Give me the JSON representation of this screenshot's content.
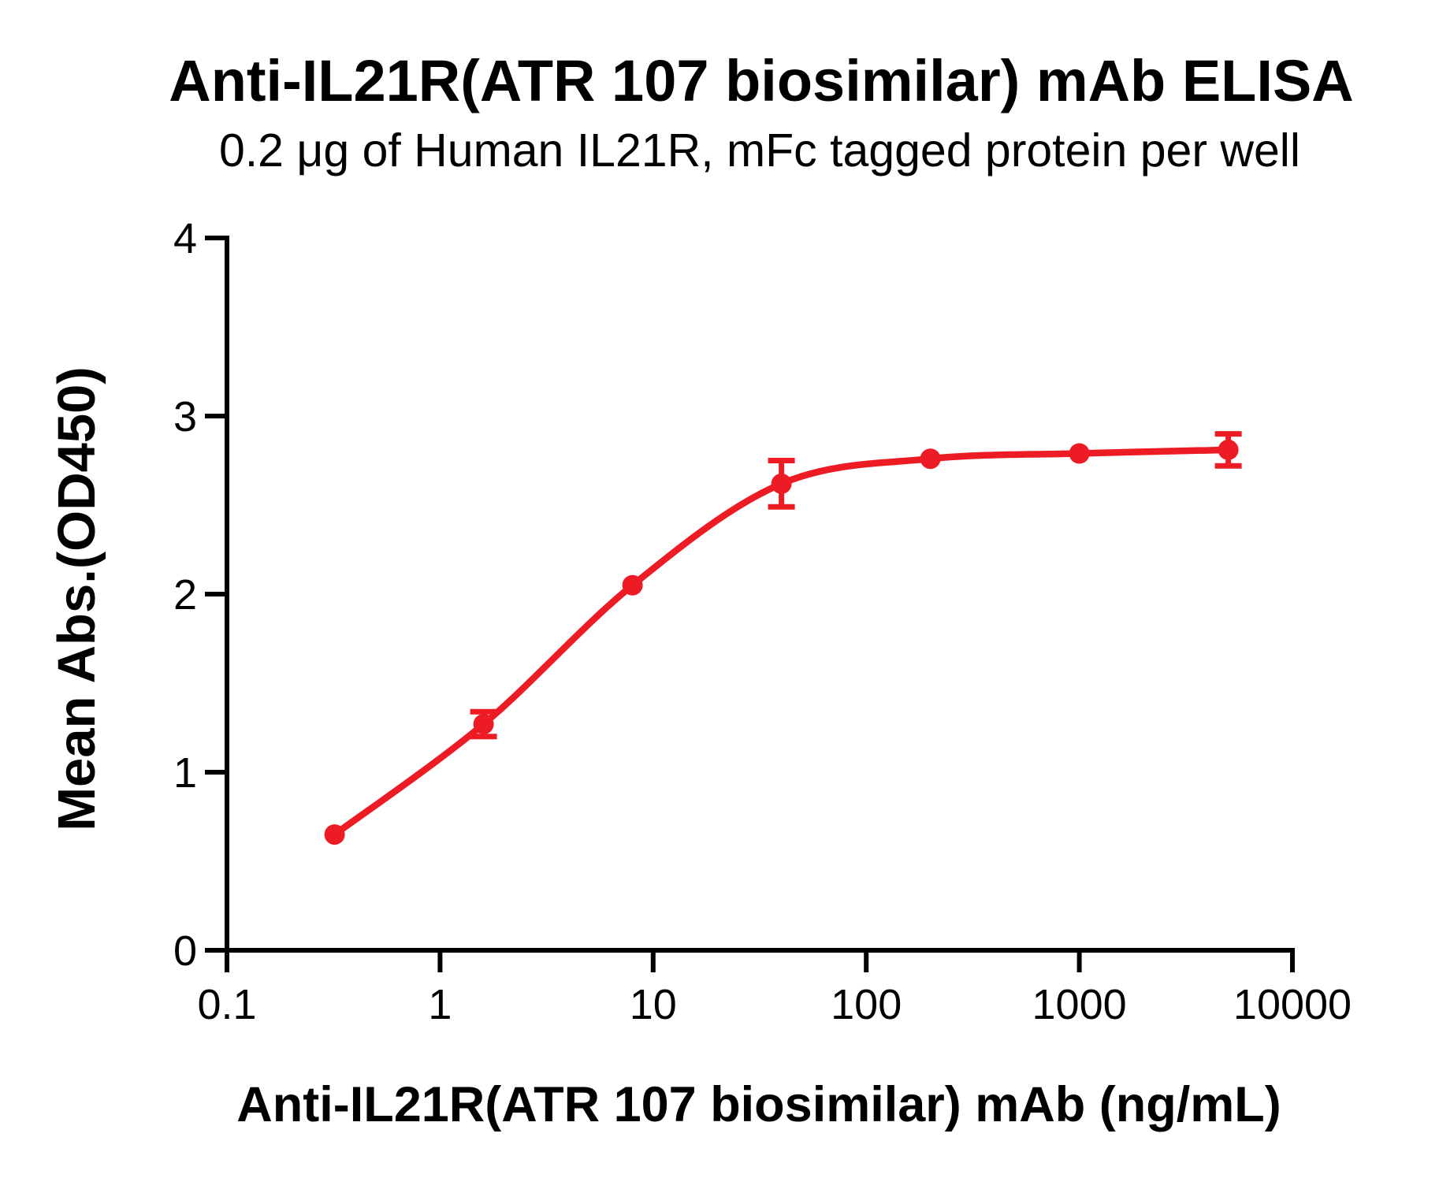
{
  "chart_data": {
    "type": "scatter",
    "title": "Anti-IL21R(ATR 107 biosimilar) mAb ELISA",
    "subtitle": "0.2 μg of Human IL21R, mFc tagged protein per well",
    "xlabel": "Anti-IL21R(ATR 107 biosimilar) mAb (ng/mL)",
    "ylabel": "Mean Abs.(OD450)",
    "x_scale": "log10",
    "xlim": [
      0.1,
      10000
    ],
    "ylim": [
      0,
      4
    ],
    "x_ticks": [
      0.1,
      1,
      10,
      100,
      1000,
      10000
    ],
    "x_tick_labels": [
      "0.1",
      "1",
      "10",
      "100",
      "1000",
      "10000"
    ],
    "y_ticks": [
      0,
      1,
      2,
      3,
      4
    ],
    "y_tick_labels": [
      "0",
      "1",
      "2",
      "3",
      "4"
    ],
    "grid": false,
    "legend": null,
    "axis_color": "#000000",
    "series": [
      {
        "name": "Anti-IL21R(ATR 107 biosimilar) mAb",
        "color": "#ED1C24",
        "marker": "circle",
        "line": "smooth",
        "points": [
          {
            "x": 0.32,
            "y": 0.65,
            "y_err": 0.02
          },
          {
            "x": 1.6,
            "y": 1.27,
            "y_err": 0.07
          },
          {
            "x": 8,
            "y": 2.05,
            "y_err": 0.02
          },
          {
            "x": 40,
            "y": 2.62,
            "y_err": 0.13
          },
          {
            "x": 200,
            "y": 2.76,
            "y_err": 0.02
          },
          {
            "x": 1000,
            "y": 2.79,
            "y_err": 0.02
          },
          {
            "x": 5000,
            "y": 2.81,
            "y_err": 0.09
          }
        ]
      }
    ]
  }
}
